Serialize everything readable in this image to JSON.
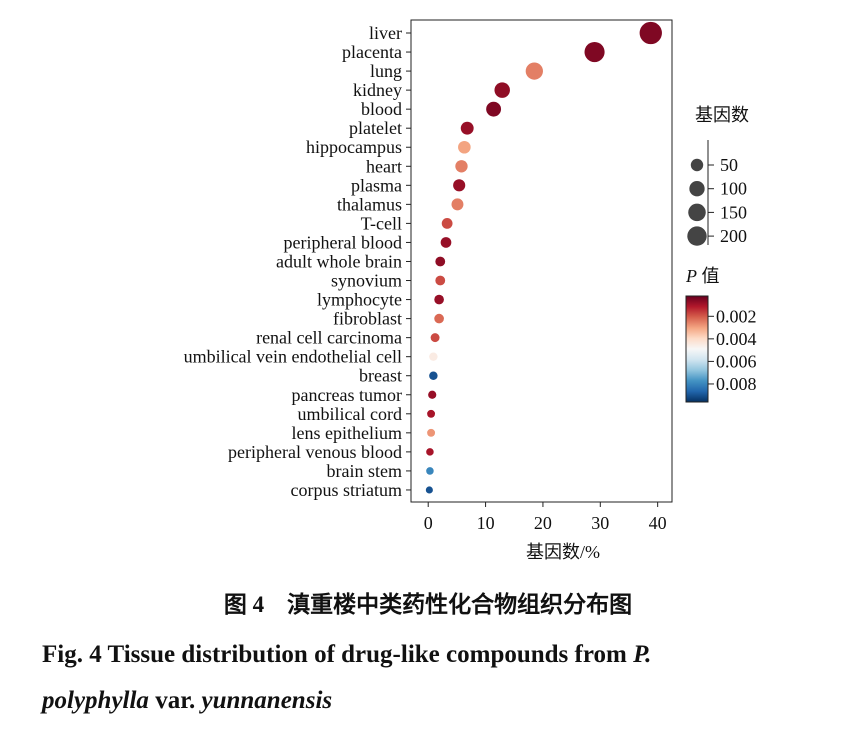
{
  "chart_data": {
    "type": "scatter",
    "xlabel": "基因数/%",
    "categories": [
      "liver",
      "placenta",
      "lung",
      "kidney",
      "blood",
      "platelet",
      "hippocampus",
      "heart",
      "plasma",
      "thalamus",
      "T-cell",
      "peripheral blood",
      "adult whole brain",
      "synovium",
      "lymphocyte",
      "fibroblast",
      "renal cell carcinoma",
      "umbilical vein endothelial cell",
      "breast",
      "pancreas tumor",
      "umbilical cord",
      "lens epithelium",
      "peripheral venous blood",
      "brain stem",
      "corpus striatum"
    ],
    "values": [
      38.8,
      29.0,
      18.5,
      12.9,
      11.4,
      6.8,
      6.3,
      5.8,
      5.4,
      5.1,
      3.3,
      3.1,
      2.1,
      2.1,
      1.9,
      1.9,
      1.2,
      0.9,
      0.9,
      0.7,
      0.5,
      0.5,
      0.3,
      0.3,
      0.2
    ],
    "sizes": [
      221,
      165,
      105,
      74,
      65,
      39,
      36,
      33,
      31,
      29,
      19,
      18,
      12,
      12,
      11,
      11,
      7,
      5,
      5,
      4,
      3,
      3,
      2,
      2,
      1
    ],
    "pvalues": [
      0.0005,
      0.0005,
      0.0025,
      0.0007,
      0.0005,
      0.0008,
      0.003,
      0.0025,
      0.0008,
      0.0025,
      0.0018,
      0.0008,
      0.0007,
      0.0018,
      0.0008,
      0.0022,
      0.0018,
      0.0045,
      0.009,
      0.0008,
      0.001,
      0.0028,
      0.001,
      0.008,
      0.009
    ],
    "xlim": [
      -3,
      42.5
    ],
    "xticks": [
      0,
      10,
      20,
      30,
      40
    ],
    "size_legend_title": "基因数",
    "size_ticks": [
      50,
      100,
      150,
      200
    ],
    "color_legend_title": [
      {
        "text": "P",
        "italic": true
      },
      {
        "text": " 值",
        "italic": false
      }
    ],
    "clim": [
      0.0002,
      0.0096
    ],
    "cticks": [
      0.002,
      0.004,
      0.006,
      0.008
    ],
    "colormap": [
      "#67001f",
      "#b2182b",
      "#d6604d",
      "#f4a582",
      "#fddbc7",
      "#f7f7f7",
      "#d1e5f0",
      "#92c5de",
      "#4393c3",
      "#2166ac",
      "#053061"
    ],
    "marker_color_scale": "pvalues"
  },
  "caption_cn": "图 4　滇重楼中类药性化合物组织分布图",
  "caption_en": [
    [
      {
        "text": "Fig. 4   Tissue distribution of drug-like compounds from ",
        "italic": false
      },
      {
        "text": "P.",
        "italic": true
      }
    ],
    [
      {
        "text": "polyphylla",
        "italic": true
      },
      {
        "text": " var. ",
        "italic": false
      },
      {
        "text": "yunnanensis",
        "italic": true
      }
    ]
  ]
}
